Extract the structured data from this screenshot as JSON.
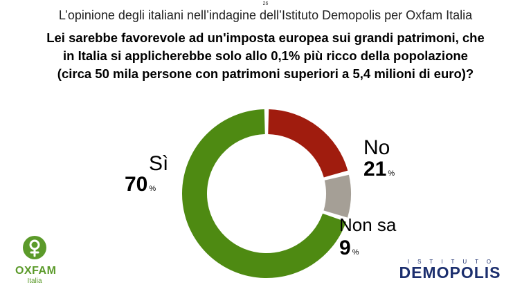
{
  "page_number": "26",
  "subtitle": "L’opinione degli italiani nell’indagine dell’Istituto Demopolis per Oxfam Italia",
  "question_lines": [
    "Lei sarebbe favorevole ad un'imposta europea sui grandi patrimoni, che",
    "in Italia si applicherebbe solo allo 0,1% più ricco della popolazione",
    "(circa 50 mila persone con patrimoni superiori a 5,4 milioni di euro)?"
  ],
  "chart_data": {
    "type": "pie",
    "variant": "donut",
    "categories": [
      "Sì",
      "No",
      "Non sa"
    ],
    "values": [
      70,
      21,
      9
    ],
    "value_labels": [
      "70",
      "21",
      "9"
    ],
    "unit": "%",
    "colors": [
      "#4e8a12",
      "#a01c0e",
      "#a59f96"
    ],
    "title": "",
    "legend": "none"
  },
  "logos": {
    "oxfam": {
      "word": "OXFAM",
      "sub": "Italia",
      "color": "#5b9a2a"
    },
    "demopolis": {
      "top": "ISTITUTO",
      "main": "DEMOPOLIS",
      "color": "#1c2f6e"
    }
  }
}
